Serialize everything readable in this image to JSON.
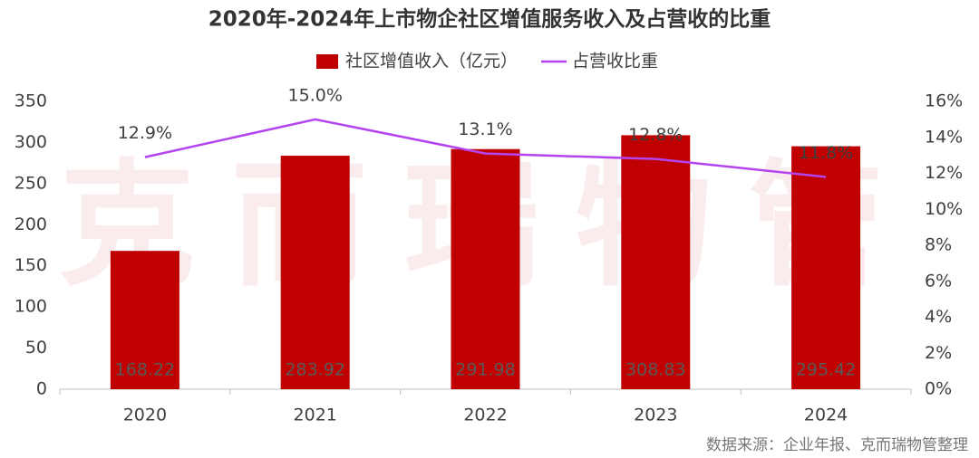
{
  "chart_data": {
    "type": "bar-line",
    "title": "2020年-2024年上市物企社区增值服务收入及占营收的比重",
    "watermark": "克而瑞物管",
    "source": "数据来源：企业年报、克而瑞物管整理",
    "categories": [
      "2020",
      "2021",
      "2022",
      "2023",
      "2024"
    ],
    "series": [
      {
        "name": "社区增值收入（亿元）",
        "type": "bar",
        "color": "#c00000",
        "values": [
          168.22,
          283.92,
          291.98,
          308.83,
          295.42
        ]
      },
      {
        "name": "占营收比重",
        "type": "line",
        "axis": "y2",
        "color": "#b444f0",
        "values": [
          12.9,
          15.0,
          13.1,
          12.8,
          11.8
        ],
        "value_labels": [
          "12.9%",
          "15.0%",
          "13.1%",
          "12.8%",
          "11.8%"
        ]
      }
    ],
    "ylim": [
      0,
      350
    ],
    "yticks": [
      0,
      50,
      100,
      150,
      200,
      250,
      300,
      350
    ],
    "y2lim": [
      0,
      16
    ],
    "y2ticks": [
      {
        "value": 0,
        "label": "0%"
      },
      {
        "value": 2,
        "label": "2%"
      },
      {
        "value": 4,
        "label": "4%"
      },
      {
        "value": 6,
        "label": "6%"
      },
      {
        "value": 8,
        "label": "8%"
      },
      {
        "value": 10,
        "label": "10%"
      },
      {
        "value": 12,
        "label": "12%"
      },
      {
        "value": 14,
        "label": "14%"
      },
      {
        "value": 16,
        "label": "16%"
      }
    ],
    "legend": "top"
  }
}
